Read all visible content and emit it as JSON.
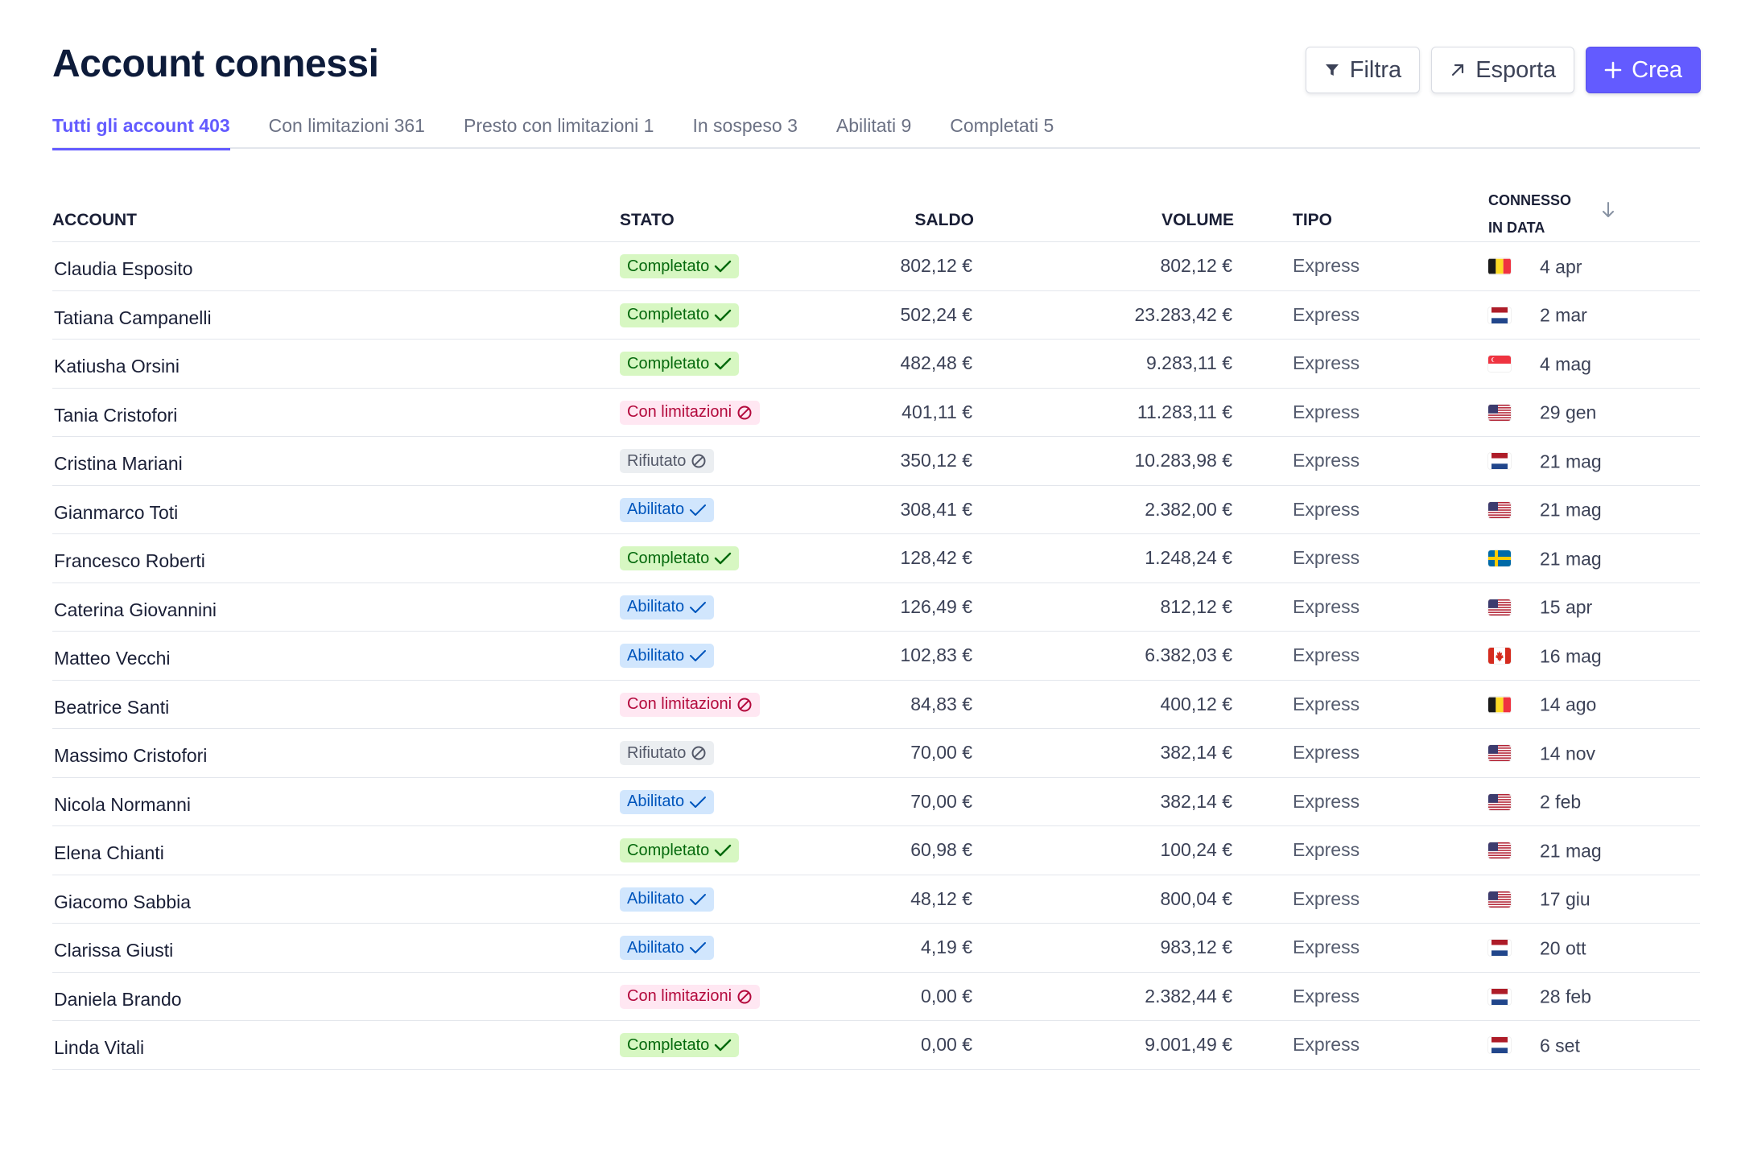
{
  "header": {
    "title": "Account connessi",
    "filter_label": "Filtra",
    "export_label": "Esporta",
    "create_label": "Crea"
  },
  "tabs": [
    {
      "label": "Tutti gli account 403",
      "active": true
    },
    {
      "label": "Con limitazioni 361",
      "active": false
    },
    {
      "label": "Presto con limitazioni 1",
      "active": false
    },
    {
      "label": "In sospeso 3",
      "active": false
    },
    {
      "label": "Abilitati 9",
      "active": false
    },
    {
      "label": "Completati 5",
      "active": false
    }
  ],
  "table": {
    "columns": {
      "account": "ACCOUNT",
      "stato": "STATO",
      "saldo": "SALDO",
      "volume": "VOLUME",
      "tipo": "TIPO",
      "connesso_1": "CONNESSO",
      "connesso_2": "IN DATA"
    },
    "rows": [
      {
        "account": "Claudia Esposito",
        "status": "Completato",
        "status_kind": "completato",
        "saldo": "802,12 €",
        "volume": "802,12 €",
        "tipo": "Express",
        "flag": "be",
        "date": "4 apr"
      },
      {
        "account": "Tatiana Campanelli",
        "status": "Completato",
        "status_kind": "completato",
        "saldo": "502,24 €",
        "volume": "23.283,42 €",
        "tipo": "Express",
        "flag": "nl",
        "date": "2 mar"
      },
      {
        "account": "Katiusha Orsini",
        "status": "Completato",
        "status_kind": "completato",
        "saldo": "482,48 €",
        "volume": "9.283,11 €",
        "tipo": "Express",
        "flag": "sg",
        "date": "4 mag"
      },
      {
        "account": "Tania Cristofori",
        "status": "Con limitazioni",
        "status_kind": "limitazioni",
        "saldo": "401,11 €",
        "volume": "11.283,11 €",
        "tipo": "Express",
        "flag": "us",
        "date": "29 gen"
      },
      {
        "account": "Cristina Mariani",
        "status": "Rifiutato",
        "status_kind": "rifiutato",
        "saldo": "350,12 €",
        "volume": "10.283,98 €",
        "tipo": "Express",
        "flag": "nl",
        "date": "21 mag"
      },
      {
        "account": "Gianmarco Toti",
        "status": "Abilitato",
        "status_kind": "abilitato",
        "saldo": "308,41 €",
        "volume": "2.382,00 €",
        "tipo": "Express",
        "flag": "us",
        "date": "21 mag"
      },
      {
        "account": "Francesco Roberti",
        "status": "Completato",
        "status_kind": "completato",
        "saldo": "128,42 €",
        "volume": "1.248,24 €",
        "tipo": "Express",
        "flag": "se",
        "date": "21 mag"
      },
      {
        "account": "Caterina Giovannini",
        "status": "Abilitato",
        "status_kind": "abilitato",
        "saldo": "126,49 €",
        "volume": "812,12 €",
        "tipo": "Express",
        "flag": "us",
        "date": "15 apr"
      },
      {
        "account": "Matteo Vecchi",
        "status": "Abilitato",
        "status_kind": "abilitato",
        "saldo": "102,83 €",
        "volume": "6.382,03 €",
        "tipo": "Express",
        "flag": "ca",
        "date": "16 mag"
      },
      {
        "account": "Beatrice Santi",
        "status": "Con limitazioni",
        "status_kind": "limitazioni",
        "saldo": "84,83 €",
        "volume": "400,12 €",
        "tipo": "Express",
        "flag": "be",
        "date": "14 ago"
      },
      {
        "account": "Massimo Cristofori",
        "status": "Rifiutato",
        "status_kind": "rifiutato",
        "saldo": "70,00 €",
        "volume": "382,14 €",
        "tipo": "Express",
        "flag": "us",
        "date": "14 nov"
      },
      {
        "account": "Nicola Normanni",
        "status": "Abilitato",
        "status_kind": "abilitato",
        "saldo": "70,00 €",
        "volume": "382,14 €",
        "tipo": "Express",
        "flag": "us",
        "date": "2 feb"
      },
      {
        "account": "Elena Chianti",
        "status": "Completato",
        "status_kind": "completato",
        "saldo": "60,98 €",
        "volume": "100,24 €",
        "tipo": "Express",
        "flag": "us",
        "date": "21 mag"
      },
      {
        "account": "Giacomo Sabbia",
        "status": "Abilitato",
        "status_kind": "abilitato",
        "saldo": "48,12 €",
        "volume": "800,04 €",
        "tipo": "Express",
        "flag": "us",
        "date": "17 giu"
      },
      {
        "account": "Clarissa Giusti",
        "status": "Abilitato",
        "status_kind": "abilitato",
        "saldo": "4,19 €",
        "volume": "983,12 €",
        "tipo": "Express",
        "flag": "nl",
        "date": "20 ott"
      },
      {
        "account": "Daniela Brando",
        "status": "Con limitazioni",
        "status_kind": "limitazioni",
        "saldo": "0,00 €",
        "volume": "2.382,44 €",
        "tipo": "Express",
        "flag": "nl",
        "date": "28 feb"
      },
      {
        "account": "Linda Vitali",
        "status": "Completato",
        "status_kind": "completato",
        "saldo": "0,00 €",
        "volume": "9.001,49 €",
        "tipo": "Express",
        "flag": "nl",
        "date": "6 set"
      }
    ]
  }
}
